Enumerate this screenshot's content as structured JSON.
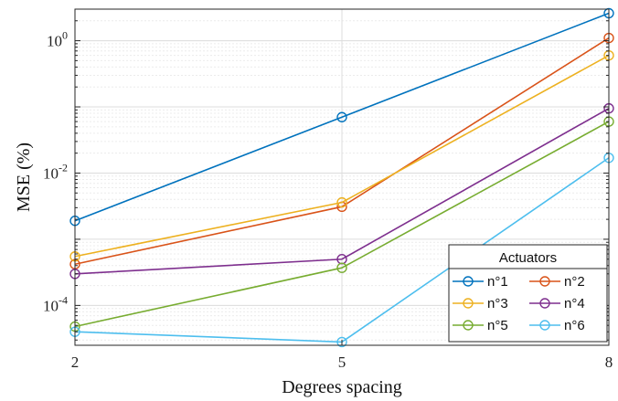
{
  "chart_data": {
    "type": "line",
    "x": [
      2,
      5,
      8
    ],
    "xlabel": "Degrees spacing",
    "ylabel": "MSE (%)",
    "x_ticks": [
      "2",
      "5",
      "8"
    ],
    "y_ticks": [
      {
        "base": "10",
        "exp": "0"
      },
      {
        "base": "10",
        "exp": "-2"
      },
      {
        "base": "10",
        "exp": "-4"
      }
    ],
    "xlim": [
      2,
      8
    ],
    "ylim": [
      2.5e-05,
      3
    ],
    "y_scale": "log",
    "grid": true,
    "legend": {
      "title": "Actuators",
      "placement": "bottom-right",
      "columns": 2
    },
    "series": [
      {
        "name": "n°1",
        "color": "#0072BD",
        "values": [
          0.0019,
          0.07,
          2.6
        ]
      },
      {
        "name": "n°2",
        "color": "#D95319",
        "values": [
          0.00042,
          0.0031,
          1.1
        ]
      },
      {
        "name": "n°3",
        "color": "#EDB120",
        "values": [
          0.00055,
          0.0036,
          0.6
        ]
      },
      {
        "name": "n°4",
        "color": "#7E2F8E",
        "values": [
          0.0003,
          0.0005,
          0.095
        ]
      },
      {
        "name": "n°5",
        "color": "#77AC30",
        "values": [
          4.8e-05,
          0.00037,
          0.06
        ]
      },
      {
        "name": "n°6",
        "color": "#4DBEEE",
        "values": [
          4e-05,
          2.8e-05,
          0.017
        ]
      }
    ]
  }
}
